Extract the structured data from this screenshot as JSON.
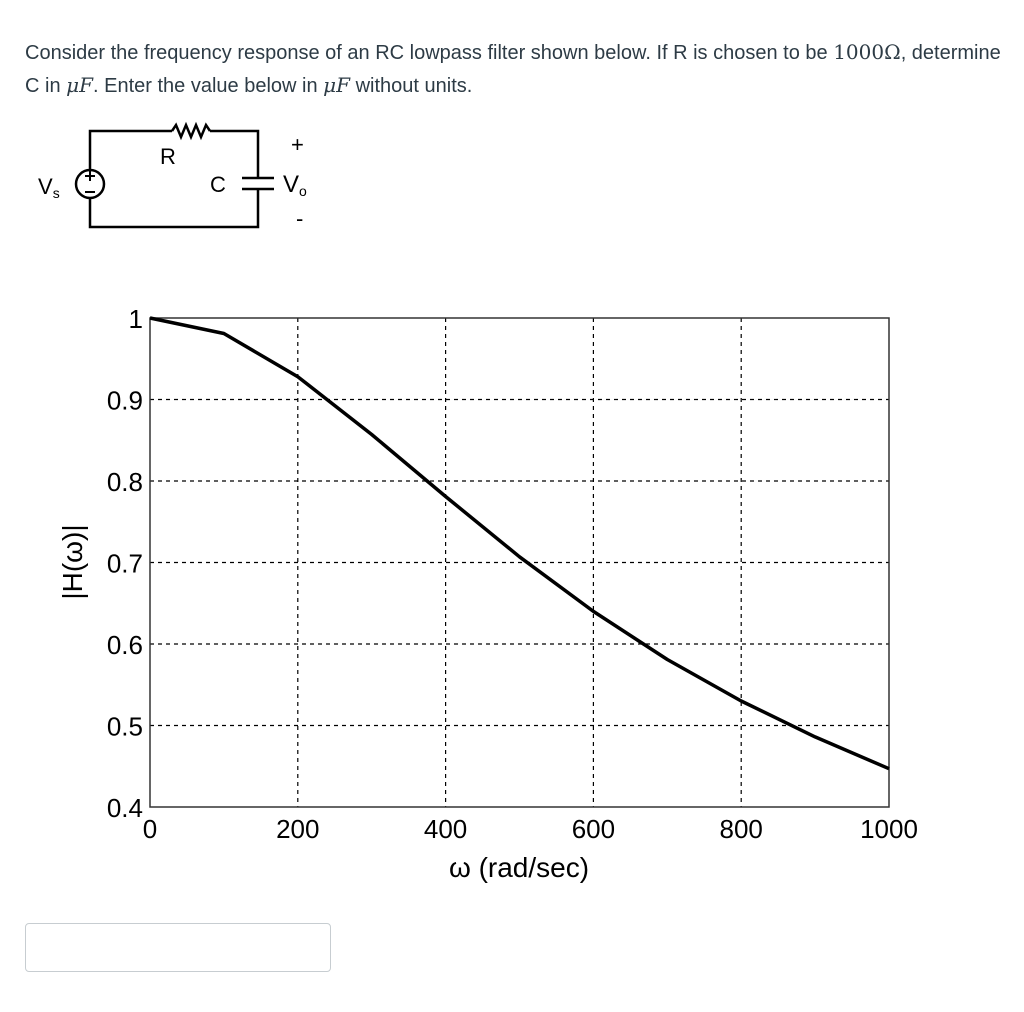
{
  "question": {
    "part1": "Consider the frequency response of an RC lowpass filter shown below. If R is chosen to be ",
    "r_value": "1000Ω",
    "part2": ", determine C in ",
    "unit1": "μF",
    "part3": ". Enter the value below in ",
    "unit2": "μF",
    "part4": " without units."
  },
  "circuit": {
    "source_label": "V",
    "source_sub": "s",
    "resistor_label": "R",
    "capacitor_label": "C",
    "output_label": "V",
    "output_sub": "o",
    "plus": "+",
    "minus": "-"
  },
  "answer": {
    "value": "",
    "placeholder": ""
  },
  "chart_data": {
    "type": "line",
    "title": "",
    "xlabel": "ω (rad/sec)",
    "ylabel": "|H(ω)|",
    "xlim": [
      0,
      1000
    ],
    "ylim": [
      0.4,
      1
    ],
    "grid": true,
    "x_ticks": [
      0,
      200,
      400,
      600,
      800,
      1000
    ],
    "x_tick_labels": [
      "0",
      "200",
      "400",
      "600",
      "800",
      "1000"
    ],
    "y_ticks": [
      0.4,
      0.5,
      0.6,
      0.7,
      0.8,
      0.9,
      1
    ],
    "y_tick_labels": [
      "0.4",
      "0.5",
      "0.6",
      "0.7",
      "0.8",
      "0.9",
      "1"
    ],
    "series": [
      {
        "name": "|H(ω)|",
        "color": "#000000",
        "x": [
          0,
          100,
          200,
          300,
          400,
          500,
          600,
          700,
          800,
          900,
          1000
        ],
        "values": [
          1.0,
          0.981,
          0.928,
          0.857,
          0.781,
          0.707,
          0.64,
          0.581,
          0.53,
          0.486,
          0.447
        ]
      }
    ]
  }
}
